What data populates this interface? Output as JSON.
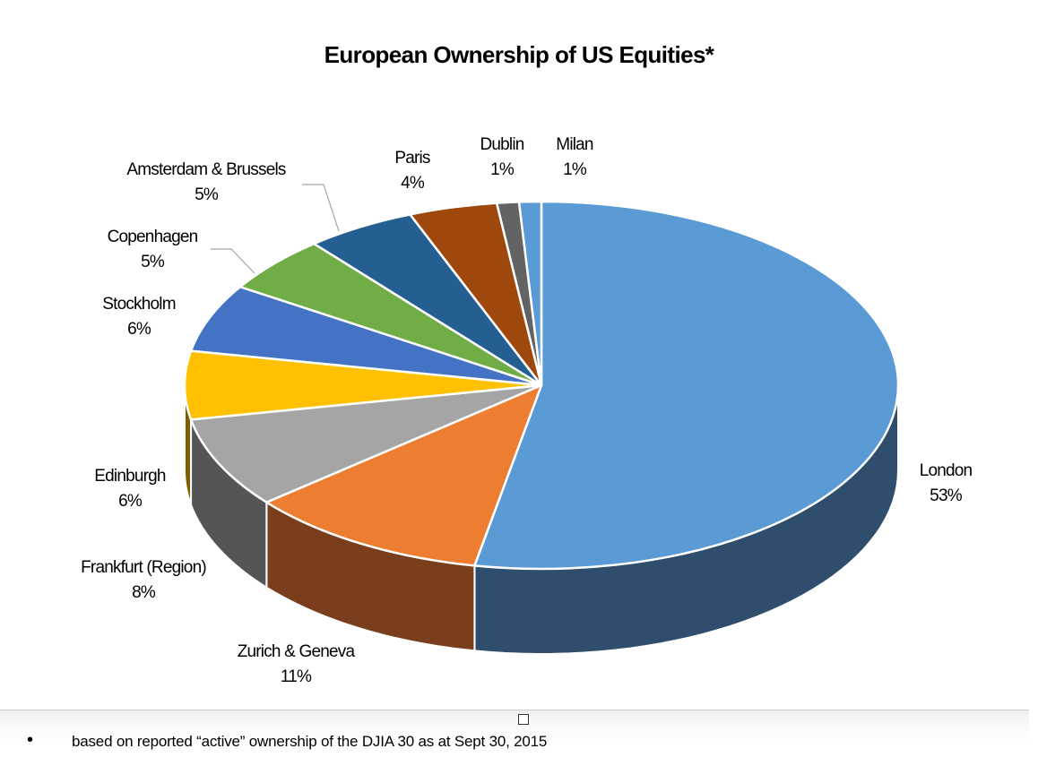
{
  "chart_data": {
    "type": "pie",
    "title": "European Ownership of US Equities*",
    "slices": [
      {
        "label": "London",
        "value": 53,
        "value_label": "53%",
        "color": "#5B9BD5",
        "side_color": "#2F4E6E"
      },
      {
        "label": "Zurich & Geneva",
        "value": 11,
        "value_label": "11%",
        "color": "#ED7D31",
        "side_color": "#7A3E1C"
      },
      {
        "label": "Frankfurt (Region)",
        "value": 8,
        "value_label": "8%",
        "color": "#A5A5A5",
        "side_color": "#555555"
      },
      {
        "label": "Edinburgh",
        "value": 6,
        "value_label": "6%",
        "color": "#FFC000",
        "side_color": "#7F6000"
      },
      {
        "label": "Stockholm",
        "value": 6,
        "value_label": "6%",
        "color": "#4472C4",
        "side_color": "#22396B"
      },
      {
        "label": "Copenhagen",
        "value": 5,
        "value_label": "5%",
        "color": "#70AD47",
        "side_color": "#3C6126"
      },
      {
        "label": "Amsterdam & Brussels",
        "value": 5,
        "value_label": "5%",
        "color": "#255E91",
        "side_color": "#13304A"
      },
      {
        "label": "Paris",
        "value": 4,
        "value_label": "4%",
        "color": "#9E480E",
        "side_color": "#5A2808"
      },
      {
        "label": "Dublin",
        "value": 1,
        "value_label": "1%",
        "color": "#636363",
        "side_color": "#333333"
      },
      {
        "label": "Milan",
        "value": 1,
        "value_label": "1%",
        "color": "#5B9BD5",
        "side_color": "#2F4E6E"
      }
    ],
    "legend": "none"
  },
  "footnote": {
    "bullet": "•",
    "text": "based on reported “active” ownership of the DJIA 30 as at Sept 30, 2015"
  }
}
